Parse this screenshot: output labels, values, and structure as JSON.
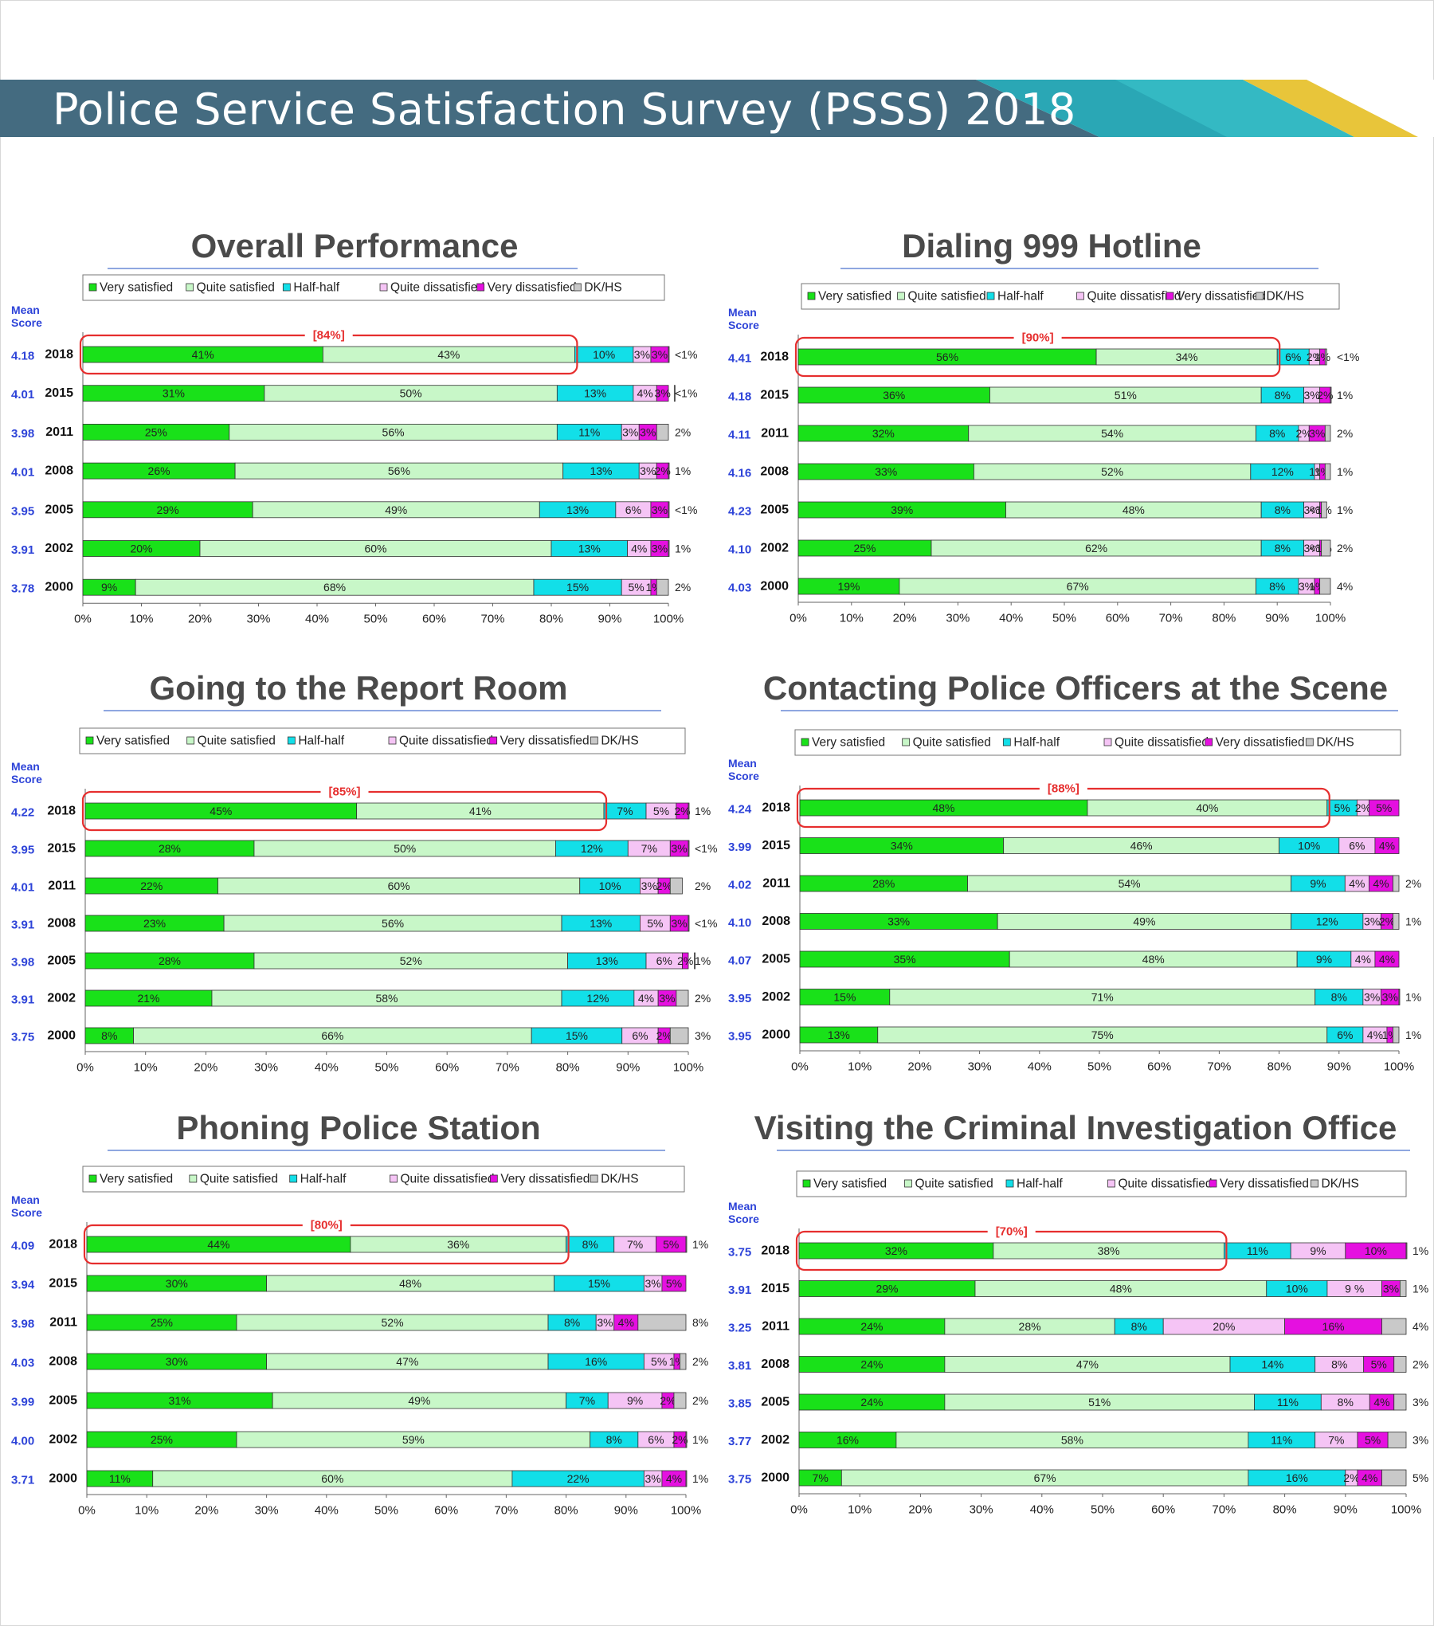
{
  "page": {
    "title": "Police Service Satisfaction Survey (PSSS) 2018"
  },
  "legend": [
    "Very satisfied",
    "Quite satisfied",
    "Half-half",
    "Quite dissatisfied",
    "Very dissatisfied",
    "DK/HS"
  ],
  "colors": [
    "#19e119",
    "#c8f7c8",
    "#12dfe8",
    "#f5c4f5",
    "#e510e0",
    "#c9c9c9"
  ],
  "mean_label": [
    "Mean",
    "Score"
  ],
  "x_ticks": [
    "0%",
    "10%",
    "20%",
    "30%",
    "40%",
    "50%",
    "60%",
    "70%",
    "80%",
    "90%",
    "100%"
  ],
  "chart_data": [
    {
      "type": "bar",
      "title": "Overall Performance",
      "highlight": "[84%]",
      "categories": [
        "2018",
        "2015",
        "2011",
        "2008",
        "2005",
        "2002",
        "2000"
      ],
      "mean_scores": [
        "4.18",
        "4.01",
        "3.98",
        "4.01",
        "3.95",
        "3.91",
        "3.78"
      ],
      "series": [
        {
          "name": "Very satisfied",
          "values": [
            41,
            31,
            25,
            26,
            29,
            20,
            9
          ],
          "labels": [
            "41%",
            "31%",
            "25%",
            "26%",
            "29%",
            "20%",
            "9%"
          ]
        },
        {
          "name": "Quite satisfied",
          "values": [
            43,
            50,
            56,
            56,
            49,
            60,
            68
          ],
          "labels": [
            "43%",
            "50%",
            "56%",
            "56%",
            "49%",
            "60%",
            "68%"
          ]
        },
        {
          "name": "Half-half",
          "values": [
            10,
            13,
            11,
            13,
            13,
            13,
            15
          ],
          "labels": [
            "10%",
            "13%",
            "11%",
            "13%",
            "13%",
            "13%",
            "15%"
          ]
        },
        {
          "name": "Quite dissatisfied",
          "values": [
            3,
            4,
            3,
            3,
            6,
            4,
            5
          ],
          "labels": [
            "3%",
            "4%",
            "3%",
            "3%",
            "6%",
            "4%",
            "5%"
          ]
        },
        {
          "name": "Very dissatisfied",
          "values": [
            3,
            3,
            3,
            2,
            3,
            3,
            1
          ],
          "labels": [
            "3%",
            "3%",
            "3%",
            "2%",
            "3%",
            "3%",
            "1%"
          ]
        },
        {
          "name": "DK/HS",
          "values": [
            0.3,
            0.3,
            2,
            1,
            0.3,
            1,
            2
          ],
          "labels": [
            "<1%",
            "<1%",
            "2%",
            "1%",
            "<1%",
            "1%",
            "2%"
          ]
        }
      ]
    },
    {
      "type": "bar",
      "title": "Dialing 999 Hotline",
      "highlight": "[90%]",
      "categories": [
        "2018",
        "2015",
        "2011",
        "2008",
        "2005",
        "2002",
        "2000"
      ],
      "mean_scores": [
        "4.41",
        "4.18",
        "4.11",
        "4.16",
        "4.23",
        "4.10",
        "4.03"
      ],
      "series": [
        {
          "name": "Very satisfied",
          "values": [
            56,
            36,
            32,
            33,
            39,
            25,
            19
          ],
          "labels": [
            "56%",
            "36%",
            "32%",
            "33%",
            "39%",
            "25%",
            "19%"
          ]
        },
        {
          "name": "Quite satisfied",
          "values": [
            34,
            51,
            54,
            52,
            48,
            62,
            67
          ],
          "labels": [
            "34%",
            "51%",
            "54%",
            "52%",
            "48%",
            "62%",
            "67%"
          ]
        },
        {
          "name": "Half-half",
          "values": [
            6,
            8,
            8,
            12,
            8,
            8,
            8
          ],
          "labels": [
            "6%",
            "8%",
            "8%",
            "12%",
            "8%",
            "8%",
            "8%"
          ]
        },
        {
          "name": "Quite dissatisfied",
          "values": [
            2,
            3,
            2,
            1,
            3,
            3,
            3
          ],
          "labels": [
            "2%",
            "3%",
            "2%",
            "1%",
            "3%",
            "3%",
            "3%"
          ]
        },
        {
          "name": "Very dissatisfied",
          "values": [
            1,
            2,
            3,
            1,
            0.3,
            0.3,
            1
          ],
          "labels": [
            "1%",
            "2%",
            "3%",
            "1%",
            "<1%",
            "<1%",
            "1%"
          ]
        },
        {
          "name": "DK/HS",
          "values": [
            0.3,
            1,
            2,
            1,
            1,
            2,
            4
          ],
          "labels": [
            "<1%",
            "1%",
            "2%",
            "1%",
            "1%",
            "2%",
            "4%"
          ]
        }
      ]
    },
    {
      "type": "bar",
      "title": "Going to the Report Room",
      "highlight": "[85%]",
      "categories": [
        "2018",
        "2015",
        "2011",
        "2008",
        "2005",
        "2002",
        "2000"
      ],
      "mean_scores": [
        "4.22",
        "3.95",
        "4.01",
        "3.91",
        "3.98",
        "3.91",
        "3.75"
      ],
      "series": [
        {
          "name": "Very satisfied",
          "values": [
            45,
            28,
            22,
            23,
            28,
            21,
            8
          ],
          "labels": [
            "45%",
            "28%",
            "22%",
            "23%",
            "28%",
            "21%",
            "8%"
          ]
        },
        {
          "name": "Quite satisfied",
          "values": [
            41,
            50,
            60,
            56,
            52,
            58,
            66
          ],
          "labels": [
            "41%",
            "50%",
            "60%",
            "56%",
            "52%",
            "58%",
            "66%"
          ]
        },
        {
          "name": "Half-half",
          "values": [
            7,
            12,
            10,
            13,
            13,
            12,
            15
          ],
          "labels": [
            "7%",
            "12%",
            "10%",
            "13%",
            "13%",
            "12%",
            "15%"
          ]
        },
        {
          "name": "Quite dissatisfied",
          "values": [
            5,
            7,
            3,
            5,
            6,
            4,
            6
          ],
          "labels": [
            "5%",
            "7%",
            "3%",
            "5%",
            "6%",
            "4%",
            "6%"
          ]
        },
        {
          "name": "Very dissatisfied",
          "values": [
            2,
            3,
            2,
            3,
            2,
            3,
            2
          ],
          "labels": [
            "2%",
            "3%",
            "2%",
            "3%",
            "2%",
            "3%",
            "2%"
          ]
        },
        {
          "name": "DK/HS",
          "values": [
            1,
            0.3,
            2,
            0.3,
            1,
            2,
            3
          ],
          "labels": [
            "1%",
            "<1%",
            "2%",
            "<1%",
            "1%",
            "2%",
            "3%"
          ]
        }
      ]
    },
    {
      "type": "bar",
      "title": "Contacting Police Officers at the Scene",
      "highlight": "[88%]",
      "categories": [
        "2018",
        "2015",
        "2011",
        "2008",
        "2005",
        "2002",
        "2000"
      ],
      "mean_scores": [
        "4.24",
        "3.99",
        "4.02",
        "4.10",
        "4.07",
        "3.95",
        "3.95"
      ],
      "series": [
        {
          "name": "Very satisfied",
          "values": [
            48,
            34,
            28,
            33,
            35,
            15,
            13
          ],
          "labels": [
            "48%",
            "34%",
            "28%",
            "33%",
            "35%",
            "15%",
            "13%"
          ]
        },
        {
          "name": "Quite satisfied",
          "values": [
            40,
            46,
            54,
            49,
            48,
            71,
            75
          ],
          "labels": [
            "40%",
            "46%",
            "54%",
            "49%",
            "48%",
            "71%",
            "75%"
          ]
        },
        {
          "name": "Half-half",
          "values": [
            5,
            10,
            9,
            12,
            9,
            8,
            6
          ],
          "labels": [
            "5%",
            "10%",
            "9%",
            "12%",
            "9%",
            "8%",
            "6%"
          ]
        },
        {
          "name": "Quite dissatisfied",
          "values": [
            2,
            6,
            4,
            3,
            4,
            3,
            4
          ],
          "labels": [
            "2%",
            "6%",
            "4%",
            "3%",
            "4%",
            "3%",
            "4%"
          ]
        },
        {
          "name": "Very dissatisfied",
          "values": [
            5,
            4,
            4,
            2,
            4,
            3,
            1
          ],
          "labels": [
            "5%",
            "4%",
            "4%",
            "2%",
            "4%",
            "3%",
            "1%"
          ]
        },
        {
          "name": "DK/HS",
          "values": [
            0,
            0,
            2,
            1,
            0,
            1,
            1
          ],
          "labels": [
            "",
            "",
            "2%",
            "1%",
            "",
            "1%",
            "1%"
          ]
        }
      ]
    },
    {
      "type": "bar",
      "title": "Phoning Police Station",
      "highlight": "[80%]",
      "categories": [
        "2018",
        "2015",
        "2011",
        "2008",
        "2005",
        "2002",
        "2000"
      ],
      "mean_scores": [
        "4.09",
        "3.94",
        "3.98",
        "4.03",
        "3.99",
        "4.00",
        "3.71"
      ],
      "series": [
        {
          "name": "Very satisfied",
          "values": [
            44,
            30,
            25,
            30,
            31,
            25,
            11
          ],
          "labels": [
            "44%",
            "30%",
            "25%",
            "30%",
            "31%",
            "25%",
            "11%"
          ]
        },
        {
          "name": "Quite satisfied",
          "values": [
            36,
            48,
            52,
            47,
            49,
            59,
            60
          ],
          "labels": [
            "36%",
            "48%",
            "52%",
            "47%",
            "49%",
            "59%",
            "60%"
          ]
        },
        {
          "name": "Half-half",
          "values": [
            8,
            15,
            8,
            16,
            7,
            8,
            22
          ],
          "labels": [
            "8%",
            "15%",
            "8%",
            "16%",
            "7%",
            "8%",
            "22%"
          ]
        },
        {
          "name": "Quite dissatisfied",
          "values": [
            7,
            3,
            3,
            5,
            9,
            6,
            3
          ],
          "labels": [
            "7%",
            "3%",
            "3%",
            "5%",
            "9%",
            "6%",
            "3%"
          ]
        },
        {
          "name": "Very dissatisfied",
          "values": [
            5,
            5,
            4,
            1,
            2,
            2,
            4
          ],
          "labels": [
            "5%",
            "5%",
            "4%",
            "1%",
            "2%",
            "2%",
            "4%"
          ]
        },
        {
          "name": "DK/HS",
          "values": [
            1,
            0,
            8,
            2,
            2,
            1,
            1
          ],
          "labels": [
            "1%",
            "",
            "8%",
            "2%",
            "2%",
            "1%",
            "1%"
          ]
        }
      ]
    },
    {
      "type": "bar",
      "title": "Visiting the Criminal Investigation Office",
      "highlight": "[70%]",
      "categories": [
        "2018",
        "2015",
        "2011",
        "2008",
        "2005",
        "2002",
        "2000"
      ],
      "mean_scores": [
        "3.75",
        "3.91",
        "3.25",
        "3.81",
        "3.85",
        "3.77",
        "3.75"
      ],
      "series": [
        {
          "name": "Very satisfied",
          "values": [
            32,
            29,
            24,
            24,
            24,
            16,
            7
          ],
          "labels": [
            "32%",
            "29%",
            "24%",
            "24%",
            "24%",
            "16%",
            "7%"
          ]
        },
        {
          "name": "Quite satisfied",
          "values": [
            38,
            48,
            28,
            47,
            51,
            58,
            67
          ],
          "labels": [
            "38%",
            "48%",
            "28%",
            "47%",
            "51%",
            "58%",
            "67%"
          ]
        },
        {
          "name": "Half-half",
          "values": [
            11,
            10,
            8,
            14,
            11,
            11,
            16
          ],
          "labels": [
            "11%",
            "10%",
            "8%",
            "14%",
            "11%",
            "11%",
            "16%"
          ]
        },
        {
          "name": "Quite dissatisfied",
          "values": [
            9,
            9,
            20,
            8,
            8,
            7,
            2
          ],
          "labels": [
            "9%",
            "9 %",
            "20%",
            "8%",
            "8%",
            "7%",
            "2%"
          ]
        },
        {
          "name": "Very dissatisfied",
          "values": [
            10,
            3,
            16,
            5,
            4,
            5,
            4
          ],
          "labels": [
            "10%",
            "3%",
            "16%",
            "5%",
            "4%",
            "5%",
            "4%"
          ]
        },
        {
          "name": "DK/HS",
          "values": [
            1,
            1,
            4,
            2,
            3,
            3,
            5
          ],
          "labels": [
            "1%",
            "1%",
            "4%",
            "2%",
            "3%",
            "3%",
            "5%"
          ]
        }
      ]
    }
  ]
}
